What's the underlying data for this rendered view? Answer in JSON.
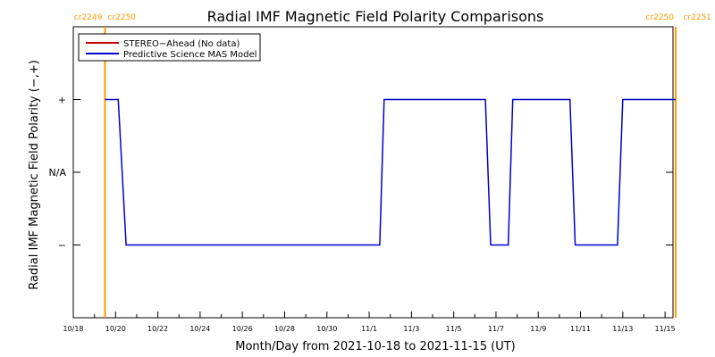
{
  "chart_data": {
    "type": "line",
    "title": "Radial IMF Magnetic Field Polarity Comparisons",
    "xlabel": "Month/Day from 2021-10-18 to 2021-11-15 (UT)",
    "ylabel": "Radial IMF Magnetic Field Polarity (−,+)",
    "x_range": [
      "10/18",
      "11/15 09:00"
    ],
    "x_ticks": [
      "10/18",
      "10/20",
      "10/22",
      "10/24",
      "10/26",
      "10/28",
      "10/30",
      "11/1",
      "11/3",
      "11/5",
      "11/7",
      "11/9",
      "11/11",
      "11/13",
      "11/15"
    ],
    "y_ticks": [
      {
        "value": 1,
        "label": "+"
      },
      {
        "value": 0,
        "label": "N/A"
      },
      {
        "value": -1,
        "label": "−"
      }
    ],
    "ylim": [
      -2,
      2
    ],
    "grid": false,
    "legend_position": "top-left",
    "legend": [
      {
        "name": "STEREO−Ahead (No data)",
        "color": "#cc0000"
      },
      {
        "name": "Predictive Science MAS Model",
        "color": "#0000cc"
      }
    ],
    "carrington_markers": [
      {
        "x": "10/19 12:00",
        "left_label": "cr2249",
        "right_label": "cr2250"
      },
      {
        "x": "11/15 12:00",
        "left_label": "cr2250",
        "right_label": "cr2251"
      }
    ],
    "series": [
      {
        "name": "Predictive Science MAS Model",
        "color": "#0000cc",
        "points": [
          [
            "10/19 12:00",
            1
          ],
          [
            "10/20 03:00",
            1
          ],
          [
            "10/20 12:00",
            -1
          ],
          [
            "11/1 12:00",
            -1
          ],
          [
            "11/1 17:00",
            1
          ],
          [
            "11/6 12:00",
            1
          ],
          [
            "11/6 18:00",
            -1
          ],
          [
            "11/7 14:00",
            -1
          ],
          [
            "11/7 19:00",
            1
          ],
          [
            "11/10 12:00",
            1
          ],
          [
            "11/10 18:00",
            -1
          ],
          [
            "11/12 18:00",
            -1
          ],
          [
            "11/13 00:00",
            1
          ],
          [
            "11/15 12:00",
            1
          ]
        ]
      }
    ],
    "colors": {
      "axes": "#000000",
      "markers": "#ff9900",
      "model": "#0000cc",
      "stereo": "#cc0000"
    }
  }
}
